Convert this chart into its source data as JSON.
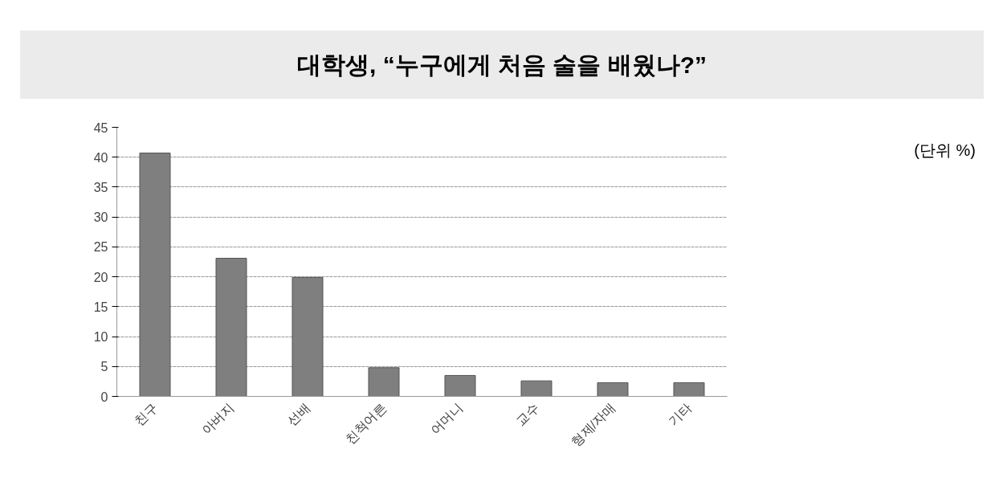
{
  "chart_data": {
    "type": "bar",
    "title": "대학생, “누구에게 처음 술을 배웠나?”",
    "categories": [
      "친구",
      "아버지",
      "선배",
      "친척어른",
      "어머니",
      "교수",
      "형제/자매",
      "기타"
    ],
    "values": [
      40.7,
      23.1,
      19.9,
      4.8,
      3.5,
      2.6,
      2.3,
      2.3
    ],
    "color": "#7f7f7f",
    "ylim": [
      0,
      45
    ],
    "yticks": [
      0,
      5,
      10,
      15,
      20,
      25,
      30,
      35,
      40,
      45
    ],
    "grid": "y",
    "annotations": [
      "(단위 %)"
    ]
  }
}
